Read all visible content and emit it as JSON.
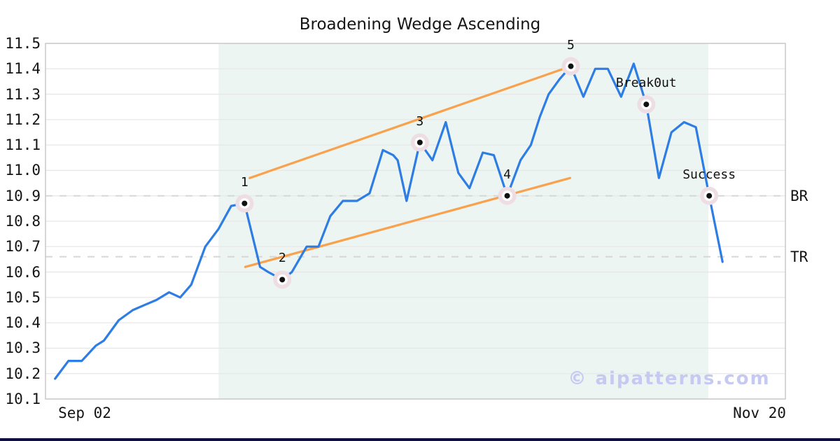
{
  "watermark": "© aipatterns.com",
  "colors": {
    "price_line": "#2e7de4",
    "trend_line": "#f9a14d",
    "shade": "#ecf5f1",
    "grid": "#e7e7e7",
    "spine": "#c9c9c9",
    "dashed_level": "#d7d7d7",
    "marker_halo": "#eedde3",
    "marker_dot": "#111111",
    "text": "#141414",
    "watermark": "#c6c9f2",
    "footer_bar": "#10103f"
  },
  "chart_data": {
    "type": "line",
    "title": "Broadening Wedge Ascending",
    "xlabel": "",
    "ylabel": "",
    "grid": "horizontal",
    "legend": "none",
    "ylim": [
      10.1,
      11.5
    ],
    "y_ticks": [
      10.1,
      10.2,
      10.3,
      10.4,
      10.5,
      10.6,
      10.7,
      10.8,
      10.9,
      11.0,
      11.1,
      11.2,
      11.3,
      11.4,
      11.5
    ],
    "x_ticks": [
      {
        "label": "Sep 02",
        "pos": 0.053
      },
      {
        "label": "Nov 20",
        "pos": 0.965
      }
    ],
    "shaded_region": {
      "x_start": 0.234,
      "x_end": 0.896
    },
    "levels": [
      {
        "label": "BR",
        "value": 10.9
      },
      {
        "label": "TR",
        "value": 10.66
      }
    ],
    "trendlines": [
      {
        "name": "upper-wedge-line",
        "from": [
          0.276,
          10.97
        ],
        "to": [
          0.71,
          11.41
        ]
      },
      {
        "name": "lower-wedge-line",
        "from": [
          0.27,
          10.62
        ],
        "to": [
          0.709,
          10.97
        ]
      }
    ],
    "markers": [
      {
        "label": "1",
        "x": 0.269,
        "value": 10.87
      },
      {
        "label": "2",
        "x": 0.32,
        "value": 10.57
      },
      {
        "label": "3",
        "x": 0.506,
        "value": 11.11
      },
      {
        "label": "4",
        "x": 0.624,
        "value": 10.9
      },
      {
        "label": "5",
        "x": 0.71,
        "value": 11.41
      },
      {
        "label": "Break0ut",
        "x": 0.812,
        "value": 11.26
      },
      {
        "label": "Success",
        "x": 0.897,
        "value": 10.9
      }
    ],
    "series": [
      {
        "name": "price",
        "points": [
          [
            0.013,
            10.18
          ],
          [
            0.031,
            10.25
          ],
          [
            0.049,
            10.25
          ],
          [
            0.068,
            10.31
          ],
          [
            0.079,
            10.33
          ],
          [
            0.099,
            10.41
          ],
          [
            0.118,
            10.45
          ],
          [
            0.134,
            10.47
          ],
          [
            0.15,
            10.49
          ],
          [
            0.167,
            10.52
          ],
          [
            0.182,
            10.5
          ],
          [
            0.197,
            10.55
          ],
          [
            0.216,
            10.7
          ],
          [
            0.234,
            10.77
          ],
          [
            0.251,
            10.86
          ],
          [
            0.269,
            10.87
          ],
          [
            0.29,
            10.62
          ],
          [
            0.301,
            10.6
          ],
          [
            0.32,
            10.57
          ],
          [
            0.333,
            10.6
          ],
          [
            0.353,
            10.7
          ],
          [
            0.369,
            10.7
          ],
          [
            0.385,
            10.82
          ],
          [
            0.402,
            10.88
          ],
          [
            0.421,
            10.88
          ],
          [
            0.438,
            10.91
          ],
          [
            0.456,
            11.08
          ],
          [
            0.47,
            11.06
          ],
          [
            0.476,
            11.04
          ],
          [
            0.488,
            10.88
          ],
          [
            0.506,
            11.11
          ],
          [
            0.523,
            11.04
          ],
          [
            0.541,
            11.19
          ],
          [
            0.558,
            10.99
          ],
          [
            0.573,
            10.93
          ],
          [
            0.591,
            11.07
          ],
          [
            0.606,
            11.06
          ],
          [
            0.624,
            10.9
          ],
          [
            0.642,
            11.04
          ],
          [
            0.656,
            11.1
          ],
          [
            0.668,
            11.21
          ],
          [
            0.68,
            11.3
          ],
          [
            0.695,
            11.36
          ],
          [
            0.71,
            11.41
          ],
          [
            0.727,
            11.29
          ],
          [
            0.743,
            11.4
          ],
          [
            0.76,
            11.4
          ],
          [
            0.778,
            11.29
          ],
          [
            0.795,
            11.42
          ],
          [
            0.812,
            11.26
          ],
          [
            0.829,
            10.97
          ],
          [
            0.846,
            11.15
          ],
          [
            0.863,
            11.19
          ],
          [
            0.879,
            11.17
          ],
          [
            0.897,
            10.9
          ],
          [
            0.915,
            10.64
          ]
        ]
      }
    ]
  }
}
